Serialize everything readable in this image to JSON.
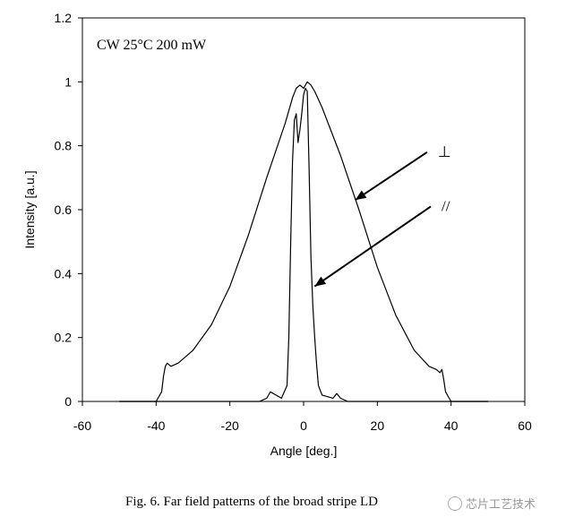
{
  "chart_data": {
    "type": "line",
    "xlabel": "Angle [deg.]",
    "ylabel": "Intensity [a.u.]",
    "xlim": [
      -60,
      60
    ],
    "ylim": [
      0,
      1.2
    ],
    "xticks": [
      "-60",
      "-40",
      "-20",
      "0",
      "20",
      "40",
      "60"
    ],
    "yticks": [
      "0",
      "0.2",
      "0.4",
      "0.6",
      "0.8",
      "1",
      "1.2"
    ],
    "annotation": "CW 25°C 200 mW",
    "series": [
      {
        "name": "⊥",
        "x": [
          -50,
          -40,
          -38.5,
          -38,
          -37.5,
          -37,
          -36,
          -34,
          -30,
          -25,
          -20,
          -15,
          -10,
          -5,
          -3,
          -2,
          -1,
          0,
          1,
          2,
          3,
          5,
          10,
          15,
          20,
          25,
          30,
          34,
          36,
          37,
          37.5,
          38,
          38.5,
          40,
          50
        ],
        "y": [
          0,
          0,
          0.03,
          0.08,
          0.11,
          0.12,
          0.11,
          0.12,
          0.16,
          0.24,
          0.36,
          0.52,
          0.7,
          0.87,
          0.95,
          0.98,
          0.99,
          0.98,
          1.0,
          0.99,
          0.97,
          0.92,
          0.77,
          0.6,
          0.42,
          0.27,
          0.16,
          0.11,
          0.1,
          0.09,
          0.1,
          0.07,
          0.03,
          0,
          0
        ]
      },
      {
        "name": "//",
        "x": [
          -50,
          -20,
          -12,
          -10,
          -9,
          -6,
          -4.5,
          -4,
          -3.5,
          -3,
          -2.5,
          -2,
          -1.5,
          -1,
          -0.5,
          0,
          0.5,
          1,
          1.5,
          2,
          2.5,
          3,
          3.5,
          4,
          5,
          8,
          9,
          10,
          12,
          20,
          50
        ],
        "y": [
          0,
          0,
          0,
          0.01,
          0.03,
          0.01,
          0.05,
          0.2,
          0.5,
          0.75,
          0.88,
          0.9,
          0.81,
          0.85,
          0.9,
          0.96,
          0.98,
          0.97,
          0.72,
          0.45,
          0.3,
          0.2,
          0.12,
          0.05,
          0.02,
          0.01,
          0.025,
          0.01,
          0,
          0,
          0
        ]
      }
    ],
    "arrows": [
      {
        "label": "⊥",
        "from": [
          33.5,
          0.78
        ],
        "to": [
          14,
          0.63
        ]
      },
      {
        "label": "//",
        "from": [
          34.5,
          0.61
        ],
        "to": [
          3,
          0.36
        ]
      }
    ]
  },
  "caption": "Fig. 6. Far field patterns of the broad stripe LD",
  "watermark": "芯片工艺技术"
}
